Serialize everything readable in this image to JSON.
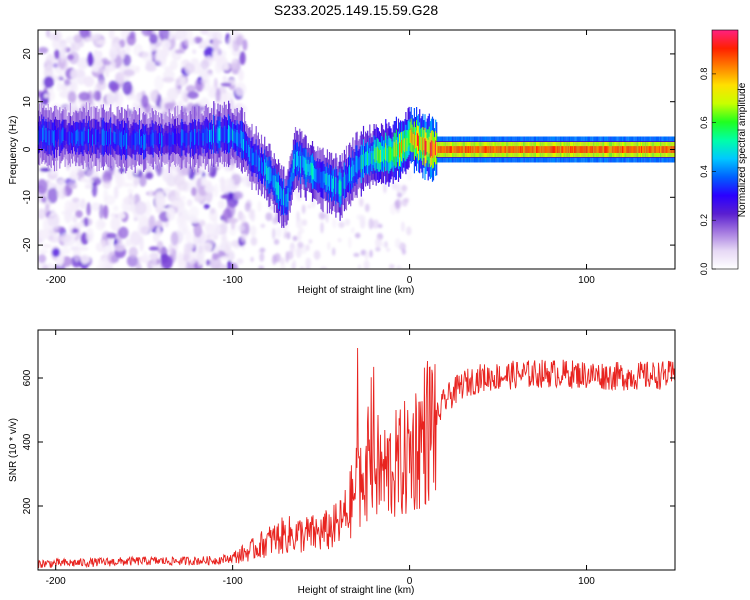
{
  "title": "S233.2025.149.15.59.G28",
  "chart_data": [
    {
      "type": "heatmap",
      "xlabel": "Height of straight line (km)",
      "ylabel": "Frequency (Hz)",
      "xlim": [
        -210,
        150
      ],
      "ylim": [
        -25,
        25
      ],
      "xticks": [
        -200,
        -100,
        0,
        100
      ],
      "yticks": [
        -20,
        -10,
        0,
        10,
        20
      ],
      "colorbar": {
        "label": "Normalized spectral amplitude",
        "range": [
          0,
          0.98
        ],
        "ticks": [
          0.0,
          0.2,
          0.4,
          0.6,
          0.8
        ],
        "colors": [
          "#ffffff",
          "#e6d8f5",
          "#a57ae0",
          "#5a1fd0",
          "#2a00ff",
          "#0060ff",
          "#00c8ff",
          "#00ffa8",
          "#20ff20",
          "#c8ff00",
          "#ffe000",
          "#ff8000",
          "#ff2000",
          "#ff2080"
        ]
      },
      "ridge": {
        "description_points_x": [
          -210,
          -180,
          -150,
          -120,
          -100,
          -95,
          -90,
          -85,
          -80,
          -75,
          -70,
          -65,
          -60,
          -55,
          -50,
          -45,
          -40,
          -35,
          -30,
          -25,
          -20,
          -15,
          -10,
          -5,
          0,
          5,
          10,
          15,
          30,
          60,
          90,
          120,
          150
        ],
        "frequency_y": [
          3,
          2.5,
          2,
          2.5,
          3,
          2,
          -1,
          -3,
          -5,
          -8,
          -11,
          -2,
          -3,
          -5,
          -6,
          -7,
          -8,
          -6,
          -3,
          -2,
          -1,
          -1,
          -0.5,
          0,
          2.5,
          1.5,
          0.5,
          0,
          0,
          0,
          0,
          0,
          0
        ],
        "amplitude": [
          0.35,
          0.35,
          0.35,
          0.35,
          0.45,
          0.4,
          0.4,
          0.4,
          0.45,
          0.45,
          0.45,
          0.4,
          0.45,
          0.45,
          0.45,
          0.45,
          0.45,
          0.4,
          0.45,
          0.5,
          0.55,
          0.6,
          0.65,
          0.75,
          0.7,
          0.8,
          0.85,
          0.9,
          0.9,
          0.9,
          0.9,
          0.9,
          0.9
        ]
      }
    },
    {
      "type": "line",
      "xlabel": "Height of straight line (km)",
      "ylabel": "SNR (10 * v/v)",
      "xlim": [
        -210,
        150
      ],
      "ylim": [
        0,
        750
      ],
      "xticks": [
        -200,
        -100,
        0,
        100
      ],
      "yticks": [
        200,
        400,
        600
      ],
      "series": [
        {
          "color": "#e8231f",
          "x": [
            -210,
            -190,
            -170,
            -150,
            -130,
            -110,
            -100,
            -90,
            -80,
            -70,
            -60,
            -50,
            -40,
            -35,
            -30,
            -25,
            -20,
            -15,
            -10,
            -5,
            0,
            5,
            10,
            15,
            20,
            30,
            40,
            60,
            80,
            100,
            120,
            150
          ],
          "values": [
            20,
            22,
            25,
            28,
            28,
            30,
            38,
            60,
            90,
            110,
            110,
            115,
            140,
            180,
            260,
            330,
            330,
            300,
            320,
            330,
            360,
            400,
            440,
            470,
            530,
            580,
            600,
            610,
            615,
            610,
            605,
            610
          ]
        }
      ]
    }
  ]
}
